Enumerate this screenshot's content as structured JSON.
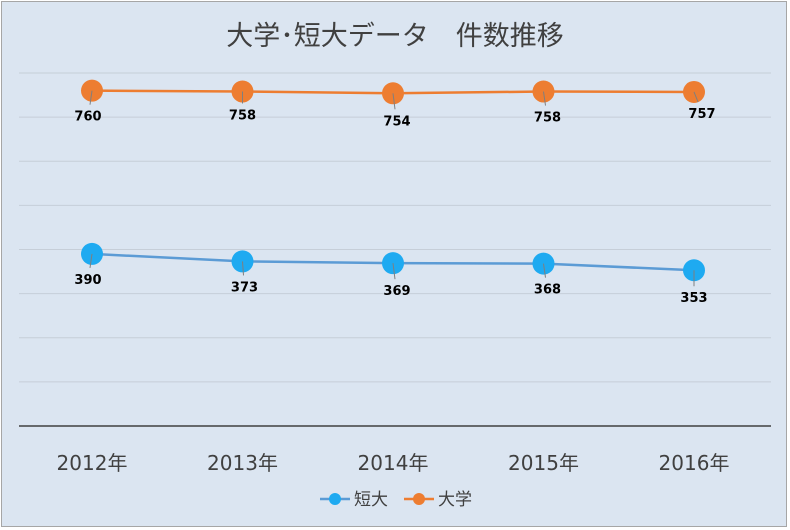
{
  "chart_data": {
    "type": "line",
    "title": "大学･短大データ　件数推移",
    "categories": [
      "2012年",
      "2013年",
      "2014年",
      "2015年",
      "2016年"
    ],
    "series": [
      {
        "name": "短大",
        "values": [
          390,
          373,
          369,
          368,
          353
        ],
        "color": "#1eaaf1",
        "line_color": "#5b9bd5"
      },
      {
        "name": "大学",
        "values": [
          760,
          758,
          754,
          758,
          757
        ],
        "color": "#ed7d31",
        "line_color": "#ed7d31"
      }
    ],
    "ylim": [
      0,
      800
    ],
    "y_gridline_step": 100,
    "y_tick_labels_shown": false,
    "grid": true,
    "data_labels": true,
    "legend_position": "bottom",
    "legend_order": [
      "短大",
      "大学"
    ]
  }
}
